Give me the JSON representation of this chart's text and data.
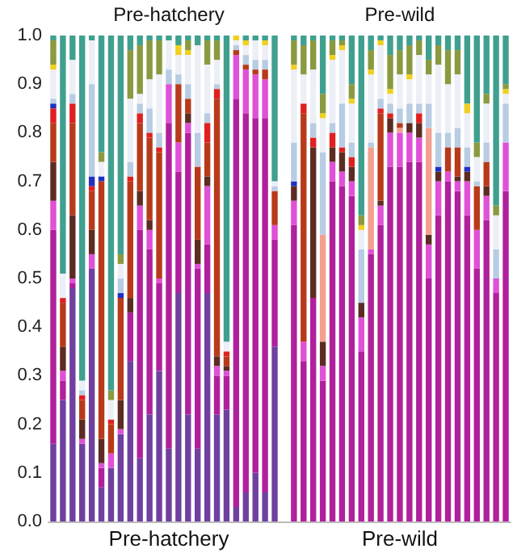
{
  "chart_data": {
    "type": "bar",
    "stacked": true,
    "grid": false,
    "categories": [
      null,
      null,
      null,
      null,
      null,
      null,
      null,
      null,
      null,
      null,
      null,
      null,
      "Pre-hatchery",
      null,
      null,
      null,
      null,
      null,
      null,
      null,
      null,
      null,
      null,
      null,
      null,
      null,
      null,
      null,
      null,
      null,
      null,
      null,
      null,
      null,
      null,
      null,
      "Pre-wild",
      null,
      null,
      null,
      null,
      null,
      null,
      null,
      null,
      null,
      null,
      null
    ],
    "annotations": [
      "Pre-hatchery",
      "Pre-wild"
    ],
    "ylim": [
      0,
      1
    ],
    "yticks": [
      {
        "value": 0,
        "label": "0.0"
      },
      0.1,
      0.2,
      0.3,
      0.4,
      0.5,
      0.6,
      0.7,
      0.8,
      0.9,
      {
        "value": 1,
        "label": "1.0"
      }
    ],
    "series": [
      {
        "color": "#7040a0",
        "values": [
          0.16,
          0.25,
          0.48,
          0.16,
          0.52,
          0.07,
          0.11,
          0.18,
          0.33,
          0.13,
          0.22,
          0.31,
          0.15,
          0.47,
          0.22,
          0.15,
          0.47,
          0.22,
          0.23,
          0.03,
          0.06,
          0.1,
          0.06,
          0.36,
          null,
          0,
          0,
          0,
          0,
          0,
          0,
          0,
          0,
          0,
          0,
          0,
          0,
          0,
          0,
          0,
          0,
          0,
          0,
          0,
          0,
          0,
          0,
          0
        ]
      },
      {
        "color": "#b0209c",
        "values": [
          0.44,
          0.04,
          0.01,
          0,
          0,
          0.04,
          0,
          0,
          0.1,
          0.47,
          0.34,
          0.18,
          0.67,
          0.25,
          0.58,
          0.37,
          0.1,
          0.08,
          0.07,
          0.84,
          0.78,
          0.73,
          0.77,
          0.22,
          null,
          0.61,
          0.33,
          0.46,
          0.29,
          0.7,
          0.69,
          0.67,
          0.35,
          0.55,
          0.61,
          0.73,
          0.73,
          0.74,
          0.74,
          0.5,
          0.63,
          0.7,
          0.68,
          0.63,
          0.52,
          0.62,
          0.47,
          0.68
        ]
      },
      {
        "color": "#e050d8",
        "values": [
          0.06,
          0.02,
          0.01,
          0.01,
          0.03,
          0.01,
          0.03,
          0.01,
          0,
          0.05,
          0.04,
          0.01,
          0.08,
          0.06,
          0.02,
          0.01,
          0.12,
          0.02,
          0.01,
          0.09,
          0.09,
          0.09,
          0.08,
          0.03,
          null,
          0.05,
          0.04,
          0,
          0.03,
          0.04,
          0.03,
          0.03,
          0.07,
          0.01,
          0.04,
          0.07,
          0.07,
          0.06,
          0.05,
          0.07,
          0.07,
          0.02,
          0.02,
          0.07,
          0.08,
          0.05,
          0.03,
          0.1
        ]
      },
      {
        "color": "#5c2c22",
        "values": [
          0.08,
          0.05,
          0.13,
          0.04,
          0.05,
          0.05,
          0,
          0.06,
          0.03,
          0.03,
          0.02,
          0,
          0,
          0,
          0.02,
          0.05,
          0.02,
          0.02,
          0.01,
          0,
          0,
          0,
          0,
          0,
          null,
          0.03,
          0,
          0.31,
          0.05,
          0.03,
          0.04,
          0.03,
          0.03,
          0,
          0.01,
          0.03,
          0,
          0.02,
          0.03,
          0.02,
          0.02,
          0,
          0.01,
          0.02,
          0,
          0.02,
          0,
          0
        ]
      },
      {
        "color": "#f4a090",
        "values": [
          0,
          0,
          0,
          0,
          0,
          0,
          0,
          0,
          0,
          0,
          0,
          0,
          0,
          0,
          0,
          0,
          0,
          0,
          0,
          0,
          0,
          0,
          0,
          0,
          null,
          0,
          0,
          0,
          0.22,
          0,
          0,
          0,
          0,
          0.21,
          0,
          0,
          0.01,
          0,
          0,
          0.22,
          0,
          0,
          0,
          0,
          0,
          0,
          0,
          0
        ]
      },
      {
        "color": "#b83a1a",
        "values": [
          0.08,
          0.09,
          0.19,
          0.04,
          0.08,
          0.53,
          0.06,
          0.21,
          0.24,
          0.14,
          0.17,
          0.26,
          0,
          0.12,
          0.03,
          0.15,
          0.07,
          0.53,
          0.02,
          0.01,
          0.01,
          0.01,
          0.02,
          0.07,
          null,
          0,
          0.47,
          0,
          0,
          0,
          0,
          0,
          0,
          0,
          0.18,
          0,
          0.01,
          0,
          0,
          0,
          0,
          0.05,
          0.06,
          0,
          0.09,
          0.05,
          0,
          0
        ]
      },
      {
        "color": "#e02020",
        "values": [
          0.03,
          0.01,
          0.04,
          0.01,
          0.01,
          0,
          0.01,
          0,
          0.01,
          0.02,
          0.01,
          0.01,
          0,
          0,
          0,
          0,
          0.04,
          0.02,
          0.01,
          0,
          0,
          0,
          0,
          0,
          null,
          0,
          0.02,
          0.02,
          0,
          0.03,
          0.01,
          0.02,
          0,
          0,
          0.01,
          0.01,
          0,
          0,
          0.02,
          0,
          0,
          0,
          0,
          0,
          0,
          0,
          0,
          0
        ]
      },
      {
        "color": "#2030c0",
        "values": [
          0.01,
          0,
          0,
          0,
          0.02,
          0.01,
          0,
          0.01,
          0,
          0,
          0,
          0,
          0,
          0,
          0,
          0,
          0,
          0,
          0,
          0,
          0,
          0,
          0,
          0,
          null,
          0.01,
          0,
          0,
          0,
          0,
          0,
          0,
          0,
          0,
          0,
          0,
          0,
          0,
          0,
          0,
          0.01,
          0,
          0,
          0.01,
          0,
          0,
          0,
          0
        ]
      },
      {
        "color": "#b8cce4",
        "values": [
          0.01,
          0,
          0.02,
          0.01,
          0.19,
          0,
          0,
          0.03,
          0.03,
          0.02,
          0.05,
          0.03,
          0.03,
          0.02,
          0.03,
          0.07,
          0.02,
          0.01,
          0,
          0.01,
          0.02,
          0.02,
          0.02,
          0.01,
          null,
          0.08,
          0,
          0.03,
          0.17,
          0.02,
          0.09,
          0.03,
          0.11,
          0.01,
          0.02,
          0.02,
          0.03,
          0.04,
          0.02,
          0.05,
          0.07,
          0.03,
          0.04,
          0.04,
          0.01,
          0.04,
          0.06,
          0.08
        ]
      },
      {
        "color": "#eceff6",
        "values": [
          0.06,
          0.05,
          0.07,
          0.02,
          0.09,
          0.03,
          0.04,
          0.03,
          0.13,
          0.02,
          0.06,
          0.12,
          0.06,
          0.04,
          0.06,
          0.18,
          0.1,
          0.05,
          0.02,
          0.01,
          0.02,
          0.04,
          0.03,
          0.01,
          null,
          0.15,
          0.06,
          0.11,
          0.07,
          0.13,
          0.11,
          0.08,
          0.04,
          0.14,
          0.11,
          0.02,
          0.07,
          0.05,
          0.1,
          0.06,
          0.14,
          0.1,
          0.11,
          0.07,
          0.05,
          0.08,
          0.07,
          0.02
        ]
      },
      {
        "color": "#f0d020",
        "values": [
          0.01,
          0,
          0,
          0,
          0,
          0,
          0,
          0,
          0,
          0,
          0,
          0,
          0,
          0.02,
          0.01,
          0,
          0,
          0,
          0,
          0.01,
          0.01,
          0,
          0.01,
          0,
          null,
          0.01,
          0,
          0,
          0.01,
          0.01,
          0.01,
          0.01,
          0.01,
          0.01,
          0.01,
          0.01,
          0,
          0.01,
          0,
          0,
          0,
          0,
          0,
          0.02,
          0,
          0,
          0,
          0.01
        ]
      },
      {
        "color": "#8a9a40",
        "values": [
          0.05,
          0,
          0,
          0,
          0,
          0.02,
          0.02,
          0.02,
          0.1,
          0.1,
          0.08,
          0.07,
          0,
          0,
          0.02,
          0,
          0.05,
          0.04,
          0,
          0,
          0,
          0,
          0,
          0,
          null,
          0.05,
          0.06,
          0.06,
          0.04,
          0.03,
          0.01,
          0.03,
          0.02,
          0.04,
          0,
          0.07,
          0.05,
          0.06,
          0.03,
          0.03,
          0.04,
          0.07,
          0.05,
          0,
          0.03,
          0.02,
          0.02,
          0.01
        ]
      },
      {
        "color": "#40a090",
        "values": [
          0.01,
          0.49,
          0.05,
          0.71,
          0.01,
          0.24,
          0.73,
          0.45,
          0.03,
          0.02,
          0.01,
          0.01,
          0.01,
          0.02,
          0.01,
          0.02,
          0.01,
          0.01,
          0.63,
          0,
          0.01,
          0.01,
          0.01,
          0.3,
          null,
          0.01,
          0.02,
          0.01,
          0.12,
          0.01,
          0.01,
          0.1,
          0.37,
          0.03,
          0.01,
          0.04,
          0.03,
          0.02,
          0.01,
          0.05,
          0.02,
          0.03,
          0.03,
          0.14,
          0.22,
          0.12,
          0.35,
          0.1
        ]
      }
    ]
  }
}
